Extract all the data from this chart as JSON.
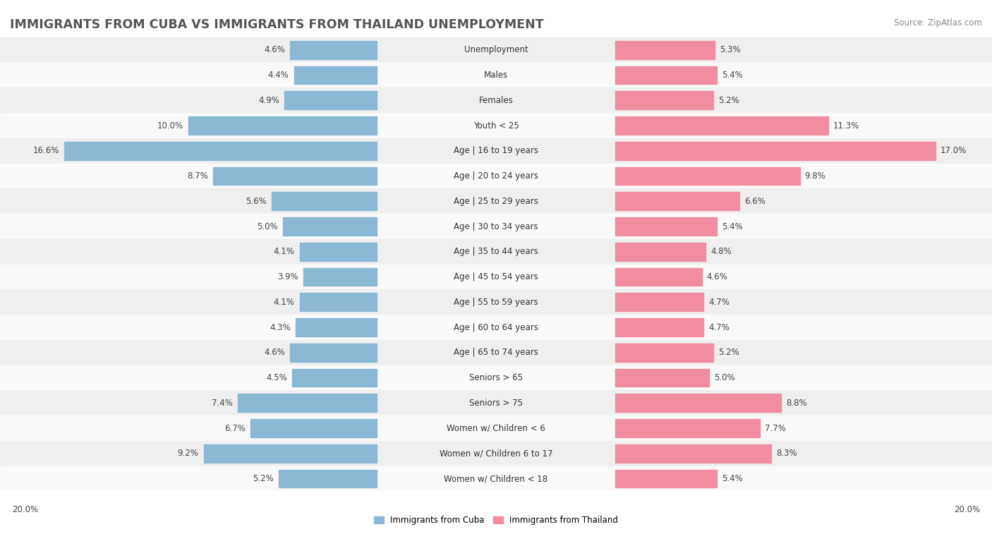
{
  "title": "IMMIGRANTS FROM CUBA VS IMMIGRANTS FROM THAILAND UNEMPLOYMENT",
  "source": "Source: ZipAtlas.com",
  "categories": [
    "Unemployment",
    "Males",
    "Females",
    "Youth < 25",
    "Age | 16 to 19 years",
    "Age | 20 to 24 years",
    "Age | 25 to 29 years",
    "Age | 30 to 34 years",
    "Age | 35 to 44 years",
    "Age | 45 to 54 years",
    "Age | 55 to 59 years",
    "Age | 60 to 64 years",
    "Age | 65 to 74 years",
    "Seniors > 65",
    "Seniors > 75",
    "Women w/ Children < 6",
    "Women w/ Children 6 to 17",
    "Women w/ Children < 18"
  ],
  "cuba_values": [
    4.6,
    4.4,
    4.9,
    10.0,
    16.6,
    8.7,
    5.6,
    5.0,
    4.1,
    3.9,
    4.1,
    4.3,
    4.6,
    4.5,
    7.4,
    6.7,
    9.2,
    5.2
  ],
  "thailand_values": [
    5.3,
    5.4,
    5.2,
    11.3,
    17.0,
    9.8,
    6.6,
    5.4,
    4.8,
    4.6,
    4.7,
    4.7,
    5.2,
    5.0,
    8.8,
    7.7,
    8.3,
    5.4
  ],
  "cuba_color": "#8BB8D4",
  "thailand_color": "#F08DA0",
  "row_bg_odd": "#EFEFEF",
  "row_bg_even": "#FAFAFA",
  "max_value": 20.0,
  "legend_cuba": "Immigrants from Cuba",
  "legend_thailand": "Immigrants from Thailand",
  "title_fontsize": 12.5,
  "source_fontsize": 8.5,
  "label_fontsize": 8.5,
  "value_fontsize": 8.5,
  "axis_label_fontsize": 8.5
}
